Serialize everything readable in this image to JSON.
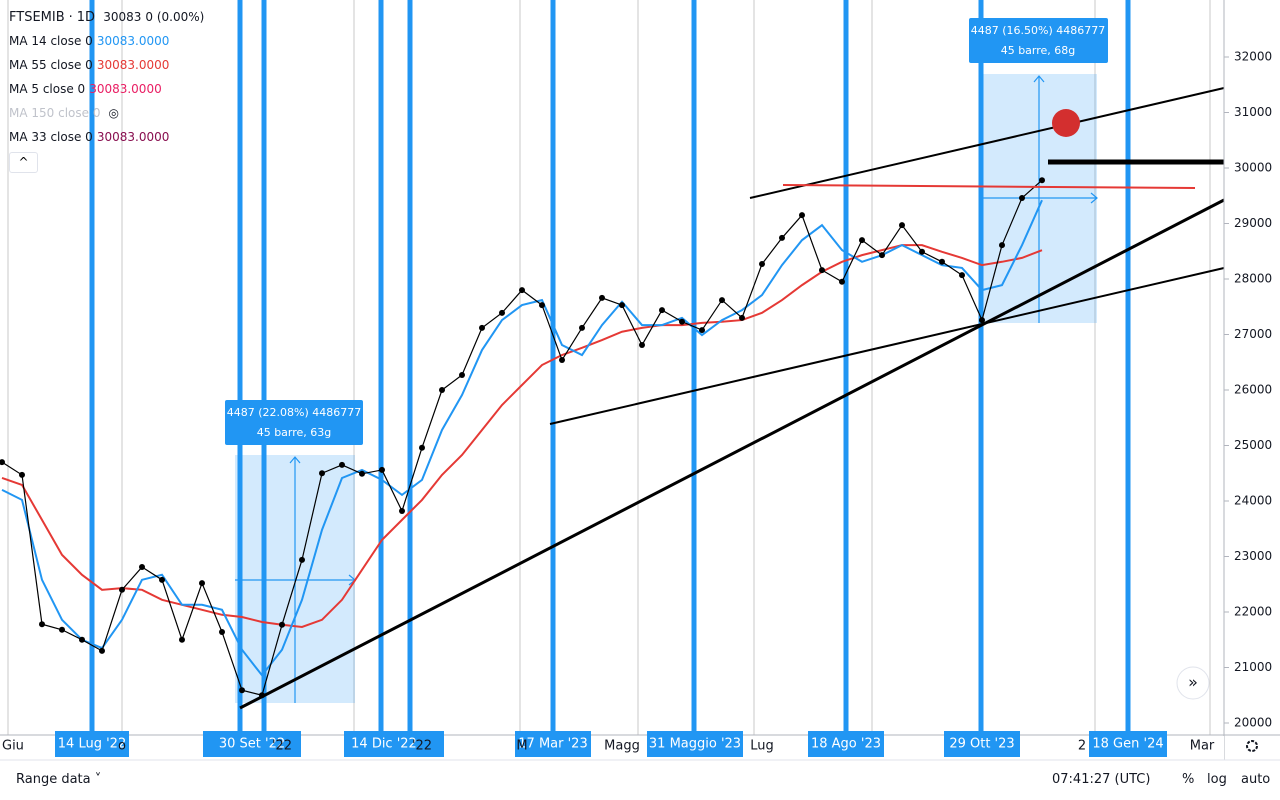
{
  "chart_data": {
    "type": "line",
    "categories": [
      "Giu",
      null,
      null,
      null,
      null,
      null,
      "o",
      null,
      null,
      null,
      null,
      null,
      null,
      null,
      "'22",
      null,
      null,
      null,
      null,
      null,
      null,
      "'22",
      null,
      null,
      null,
      null,
      "M",
      null,
      null,
      null,
      null,
      "Magg",
      null,
      null,
      null,
      null,
      null,
      null,
      "Lug",
      null,
      null,
      null,
      null,
      null,
      null,
      null,
      null,
      null,
      null,
      null,
      null,
      null,
      null,
      null,
      "2",
      null,
      null,
      null,
      null,
      null,
      "Mar"
    ],
    "series": [
      {
        "name": "FTSEMIB",
        "color": "#000000",
        "values": [
          24700,
          24470,
          21780,
          21680,
          21500,
          21300,
          22400,
          22810,
          22580,
          21500,
          22520,
          21640,
          20590,
          20500,
          21770,
          22940,
          24500,
          24650,
          24490,
          24560,
          23820,
          24960,
          26000,
          26270,
          27120,
          27390,
          27800,
          27530,
          26540,
          27120,
          27660,
          27530,
          26810,
          27440,
          27230,
          27080,
          27620,
          27300,
          28270,
          28740,
          29150,
          28160,
          27950,
          28700,
          28430,
          28970,
          28490,
          28310,
          28070,
          27260,
          28610,
          29460,
          29780,
          null,
          null,
          null,
          null,
          null,
          null,
          null,
          null
        ]
      },
      {
        "name": "MA 14 close 0",
        "color": "#2196f3",
        "values": [
          24200,
          24020,
          22580,
          21860,
          21500,
          21350,
          21860,
          22580,
          22670,
          22130,
          22130,
          22040,
          21320,
          20860,
          21320,
          22220,
          23480,
          24415,
          24560,
          24380,
          24110,
          24380,
          25280,
          25910,
          26720,
          27260,
          27530,
          27620,
          26810,
          26630,
          27170,
          27590,
          27170,
          27170,
          27300,
          26990,
          27260,
          27440,
          27710,
          28250,
          28700,
          28970,
          28520,
          28310,
          28430,
          28610,
          28430,
          28250,
          28200,
          27800,
          27890,
          28610,
          29420,
          null,
          null,
          null,
          null,
          null,
          null,
          null,
          null
        ]
      },
      {
        "name": "MA 55 close 0",
        "color": "#e53935",
        "values": [
          24415,
          24290,
          23660,
          23030,
          22670,
          22400,
          22430,
          22400,
          22220,
          22130,
          22040,
          21950,
          21910,
          21820,
          21770,
          21730,
          21860,
          22220,
          22760,
          23300,
          23660,
          24020,
          24470,
          24830,
          25280,
          25730,
          26090,
          26450,
          26630,
          26760,
          26900,
          27050,
          27120,
          27170,
          27170,
          27210,
          27230,
          27260,
          27390,
          27620,
          27890,
          28130,
          28310,
          28430,
          28520,
          28610,
          28610,
          28490,
          28380,
          28250,
          28310,
          28380,
          28520,
          null,
          null,
          null,
          null,
          null,
          null,
          null,
          null
        ]
      }
    ],
    "ylim": [
      19784,
      33027
    ],
    "yticks": [
      20000,
      21000,
      22000,
      23000,
      24000,
      25000,
      26000,
      27000,
      28000,
      29000,
      30000,
      31000,
      32000
    ]
  },
  "header": {
    "interval": "1D",
    "price": "30083",
    "change": "0 (0.00%)",
    "ma14_value": "30083.0000",
    "ma55_value": "30083.0000",
    "other_mas": [
      {
        "name": "MA 5 close 0",
        "value": "30083.0000"
      },
      {
        "name": "MA 150 close 0"
      },
      {
        "name": "MA 33 close 0",
        "value": "30083.0000"
      }
    ]
  },
  "markers": [
    "14 Lug '22",
    "30 Set '22",
    "14 Dic '22",
    "17 Mar '23",
    "31 Maggio '23",
    "18 Ago '23",
    "29 Ott '23",
    "18 Gen '24"
  ],
  "measures": [
    {
      "line1": "4487 (22.08%) 4486777",
      "line2": "45 barre, 63g"
    },
    {
      "line1": "4487 (16.50%) 4486777",
      "line2": "45 barre, 68g"
    }
  ],
  "footer": {
    "range": "Range data",
    "time": "07:41:27 (UTC)",
    "percent": "%",
    "log": "log",
    "auto": "auto"
  }
}
